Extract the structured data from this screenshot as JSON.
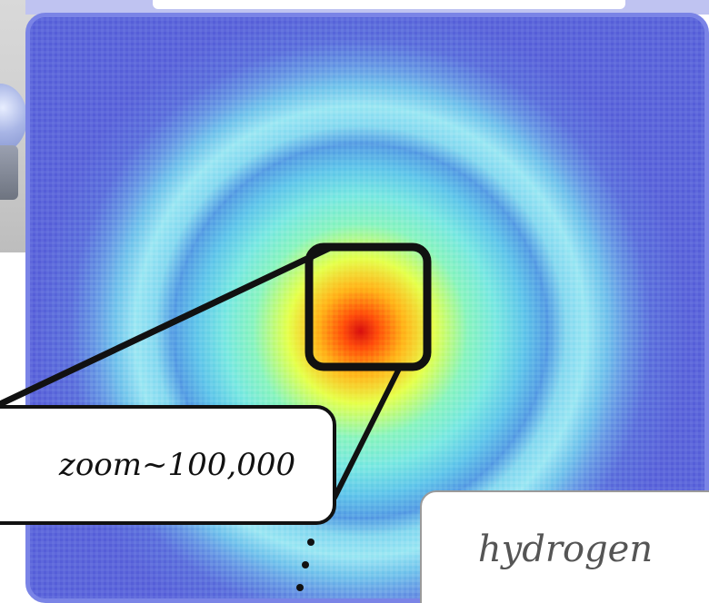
{
  "zoom_label": "zoom~100,000",
  "element_label": "hydrogen",
  "colors": {
    "panel_background": "#5d66d6",
    "panel_border": "#7a84e6",
    "callout_border": "#111111",
    "label_border": "#9a9a9a"
  }
}
